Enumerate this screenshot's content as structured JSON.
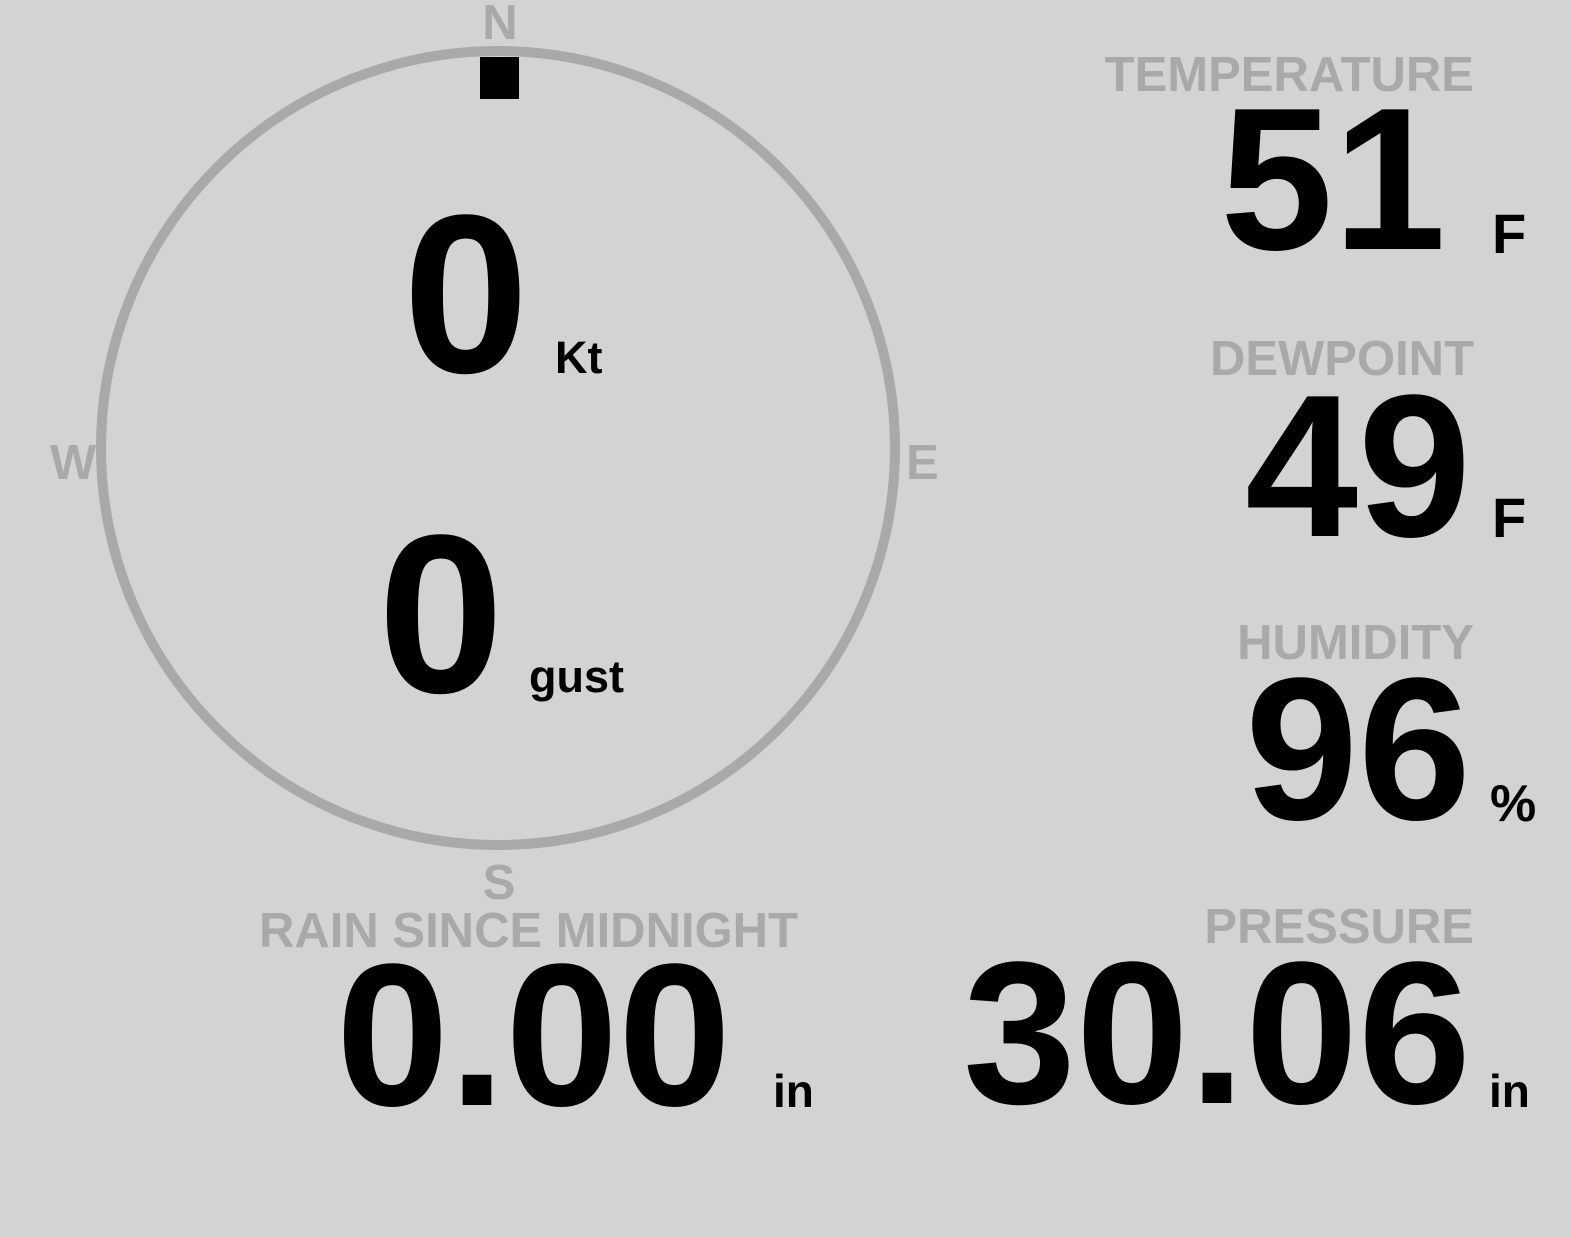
{
  "colors": {
    "background": "#d3d3d3",
    "label": "#a9a9a9",
    "value": "#000000"
  },
  "wind": {
    "direction_deg": 0,
    "compass": {
      "n": "N",
      "e": "E",
      "s": "S",
      "w": "W"
    },
    "speed": "0",
    "speed_unit": "Kt",
    "gust": "0",
    "gust_unit": "gust"
  },
  "temperature": {
    "label": "TEMPERATURE",
    "value": "51",
    "unit": "F"
  },
  "dewpoint": {
    "label": "DEWPOINT",
    "value": "49",
    "unit": "F"
  },
  "humidity": {
    "label": "HUMIDITY",
    "value": "96",
    "unit": "%"
  },
  "rain": {
    "label": "RAIN SINCE MIDNIGHT",
    "value": "0.00",
    "unit": "in"
  },
  "pressure": {
    "label": "PRESSURE",
    "value": "30.06",
    "unit": "in"
  }
}
